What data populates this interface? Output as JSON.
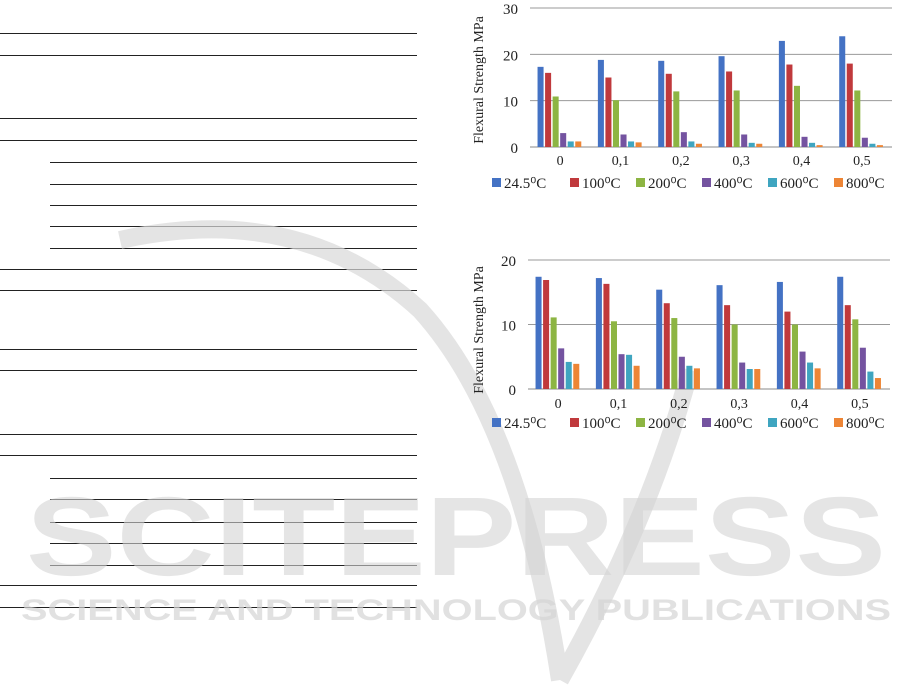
{
  "watermark": {
    "main": "SCITEPRESS",
    "sub": "SCIENCE AND TECHNOLOGY PUBLICATIONS"
  },
  "chart_data": [
    {
      "type": "bar",
      "ylabel": "Flexural  Strength MPa",
      "ylim": [
        0,
        30
      ],
      "yticks": [
        0,
        10,
        20,
        30
      ],
      "grid": true,
      "legend": "bottom",
      "categories": [
        "0",
        "0,1",
        "0,2",
        "0,3",
        "0,4",
        "0,5"
      ],
      "series": [
        {
          "name": "24.5⁰C",
          "color": "#4472c4",
          "values": [
            17.3,
            18.8,
            18.6,
            19.6,
            22.9,
            23.9
          ]
        },
        {
          "name": "100⁰C",
          "color": "#c0393c",
          "values": [
            16.0,
            15.0,
            15.8,
            16.3,
            17.8,
            18.0
          ]
        },
        {
          "name": "200⁰C",
          "color": "#8db543",
          "values": [
            10.9,
            10.1,
            12.0,
            12.2,
            13.2,
            12.2
          ]
        },
        {
          "name": "400⁰C",
          "color": "#7453a0",
          "values": [
            3.0,
            2.7,
            3.2,
            2.7,
            2.2,
            2.0
          ]
        },
        {
          "name": "600⁰C",
          "color": "#3fa5c0",
          "values": [
            1.2,
            1.2,
            1.2,
            0.9,
            0.9,
            0.7
          ]
        },
        {
          "name": "800⁰C",
          "color": "#ed8535",
          "values": [
            1.2,
            1.0,
            0.7,
            0.7,
            0.4,
            0.4
          ]
        }
      ]
    },
    {
      "type": "bar",
      "ylabel": "Flexural  Strength MPa",
      "ylim": [
        0,
        20
      ],
      "yticks": [
        0,
        10,
        20
      ],
      "grid": true,
      "legend": "bottom",
      "categories": [
        "0",
        "0,1",
        "0,2",
        "0,3",
        "0,4",
        "0,5"
      ],
      "series": [
        {
          "name": "24.5⁰C",
          "color": "#4472c4",
          "values": [
            17.4,
            17.2,
            15.4,
            16.1,
            16.6,
            17.4
          ]
        },
        {
          "name": "100⁰C",
          "color": "#c0393c",
          "values": [
            16.9,
            16.3,
            13.3,
            13.0,
            12.0,
            13.0
          ]
        },
        {
          "name": "200⁰C",
          "color": "#8db543",
          "values": [
            11.1,
            10.5,
            11.0,
            10.0,
            10.0,
            10.8
          ]
        },
        {
          "name": "400⁰C",
          "color": "#7453a0",
          "values": [
            6.3,
            5.4,
            5.0,
            4.1,
            5.8,
            6.4
          ]
        },
        {
          "name": "600⁰C",
          "color": "#3fa5c0",
          "values": [
            4.2,
            5.3,
            3.6,
            3.1,
            4.1,
            2.7
          ]
        },
        {
          "name": "800⁰C",
          "color": "#ed8535",
          "values": [
            3.9,
            3.6,
            3.2,
            3.1,
            3.2,
            1.7
          ]
        }
      ]
    }
  ]
}
